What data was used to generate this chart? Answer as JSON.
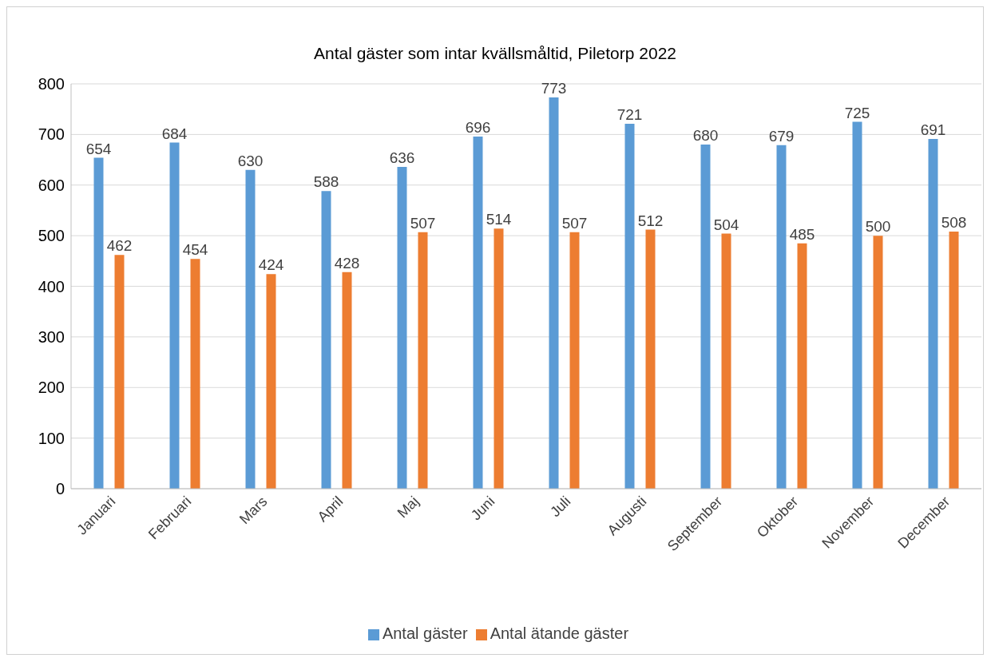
{
  "chart_data": {
    "type": "bar",
    "title": "Antal gäster som intar kvällsmåltid, Piletorp 2022",
    "categories": [
      "Januari",
      "Februari",
      "Mars",
      "April",
      "Maj",
      "Juni",
      "Juli",
      "Augusti",
      "September",
      "Oktober",
      "November",
      "December"
    ],
    "series": [
      {
        "name": "Antal gäster",
        "color": "#5b9bd5",
        "values": [
          654,
          684,
          630,
          588,
          636,
          696,
          773,
          721,
          680,
          679,
          725,
          691
        ]
      },
      {
        "name": "Antal ätande gäster",
        "color": "#ed7d31",
        "values": [
          462,
          454,
          424,
          428,
          507,
          514,
          507,
          512,
          504,
          485,
          500,
          508
        ]
      }
    ],
    "ylim": [
      0,
      800
    ],
    "yticks": [
      0,
      100,
      200,
      300,
      400,
      500,
      600,
      700,
      800
    ],
    "grid": "y",
    "legend": "bottom",
    "data_labels": true
  }
}
